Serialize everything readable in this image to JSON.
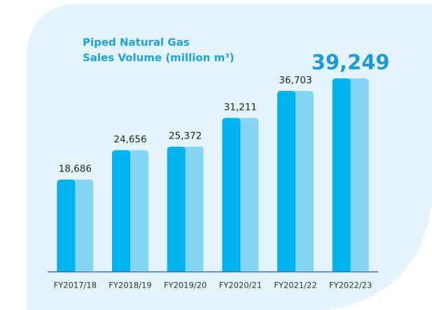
{
  "chart_data": {
    "type": "bar",
    "title": [
      "Piped Natural Gas",
      "Sales Volume (million m³)"
    ],
    "categories": [
      "FY2017/18",
      "FY2018/19",
      "FY2019/20",
      "FY2020/21",
      "FY2021/22",
      "FY2022/23"
    ],
    "values": [
      18686,
      24656,
      25372,
      31211,
      36703,
      39249
    ],
    "value_labels": [
      "18,686",
      "24,656",
      "25,372",
      "31,211",
      "36,703",
      "39,249"
    ],
    "colors": [
      "#00b3ee",
      "#84d5f6"
    ]
  }
}
